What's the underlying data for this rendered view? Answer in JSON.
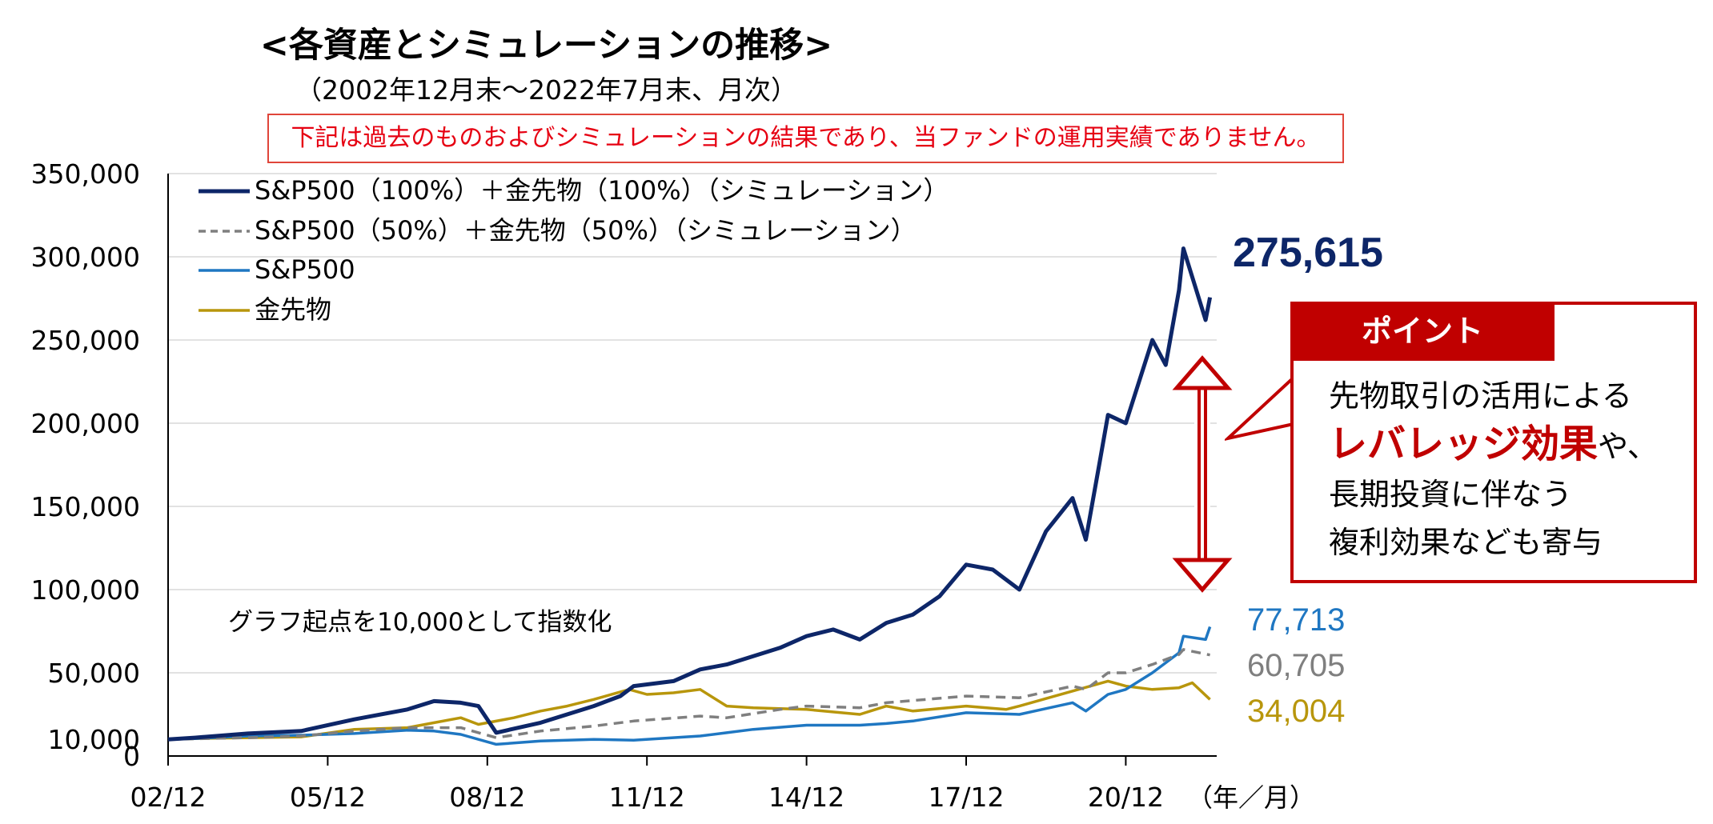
{
  "title": "<各資産とシミュレーションの推移>",
  "subtitle": "（2002年12月末～2022年7月末、月次）",
  "notice": "下記は過去のものおよびシミュレーションの結果であり、当ファンドの運用実績でありません。",
  "point": {
    "tab": "ポイント",
    "line1": "先物取引の活用による",
    "line2_emphasis": "レバレッジ効果",
    "line2_rest": "や、",
    "line3": "長期投資に伴なう",
    "line4": "複利効果なども寄与"
  },
  "colors": {
    "sp_gold_100": "#0d2668",
    "sp_gold_50": "#7f7f7f",
    "sp500": "#1f77c2",
    "gold": "#b8960c",
    "accent_red": "#c00000"
  },
  "chart_data": {
    "type": "line",
    "xlabel": "（年／月）",
    "annotation": "グラフ起点を10,000として指数化",
    "x_ticks": [
      "02/12",
      "05/12",
      "08/12",
      "11/12",
      "14/12",
      "17/12",
      "20/12"
    ],
    "y_ticks": [
      0,
      10000,
      50000,
      100000,
      150000,
      200000,
      250000,
      300000,
      350000
    ],
    "y_tick_labels": [
      "0",
      "10,000",
      "50,000",
      "100,000",
      "150,000",
      "200,000",
      "250,000",
      "300,000",
      "350,000"
    ],
    "ylim": [
      0,
      350000
    ],
    "xlim": [
      "2002-12",
      "2022-07"
    ],
    "legend_position": "top-left",
    "series": [
      {
        "name": "S&P500（100%）＋金先物（100%）（シミュレーション）",
        "end_label": "275,615",
        "points": [
          [
            "2002-12",
            10000
          ],
          [
            "2003-06",
            11000
          ],
          [
            "2004-06",
            13500
          ],
          [
            "2005-06",
            15000
          ],
          [
            "2006-06",
            22000
          ],
          [
            "2007-06",
            28000
          ],
          [
            "2007-12",
            33000
          ],
          [
            "2008-06",
            32000
          ],
          [
            "2008-10",
            30000
          ],
          [
            "2009-02",
            14000
          ],
          [
            "2009-12",
            20000
          ],
          [
            "2010-12",
            30000
          ],
          [
            "2011-06",
            36000
          ],
          [
            "2011-09",
            42000
          ],
          [
            "2012-06",
            45000
          ],
          [
            "2012-12",
            52000
          ],
          [
            "2013-06",
            55000
          ],
          [
            "2014-06",
            65000
          ],
          [
            "2014-12",
            72000
          ],
          [
            "2015-06",
            76000
          ],
          [
            "2015-12",
            70000
          ],
          [
            "2016-06",
            80000
          ],
          [
            "2016-12",
            85000
          ],
          [
            "2017-06",
            96000
          ],
          [
            "2017-12",
            115000
          ],
          [
            "2018-06",
            112000
          ],
          [
            "2018-12",
            100000
          ],
          [
            "2019-06",
            135000
          ],
          [
            "2019-12",
            155000
          ],
          [
            "2020-03",
            130000
          ],
          [
            "2020-06",
            175000
          ],
          [
            "2020-08",
            205000
          ],
          [
            "2020-12",
            200000
          ],
          [
            "2021-06",
            250000
          ],
          [
            "2021-09",
            235000
          ],
          [
            "2021-12",
            280000
          ],
          [
            "2022-01",
            305000
          ],
          [
            "2022-06",
            262000
          ],
          [
            "2022-07",
            275615
          ]
        ]
      },
      {
        "name": "S&P500（50%）＋金先物（50%）（シミュレーション）",
        "end_label": "60,705",
        "points": [
          [
            "2002-12",
            10000
          ],
          [
            "2004-06",
            11000
          ],
          [
            "2005-06",
            12000
          ],
          [
            "2006-06",
            15000
          ],
          [
            "2007-06",
            17000
          ],
          [
            "2008-06",
            17000
          ],
          [
            "2009-02",
            11000
          ],
          [
            "2009-12",
            15000
          ],
          [
            "2010-12",
            18000
          ],
          [
            "2011-09",
            21000
          ],
          [
            "2012-12",
            24000
          ],
          [
            "2013-06",
            23000
          ],
          [
            "2014-06",
            28000
          ],
          [
            "2014-12",
            30000
          ],
          [
            "2015-12",
            29000
          ],
          [
            "2016-06",
            32000
          ],
          [
            "2017-12",
            36000
          ],
          [
            "2018-12",
            35000
          ],
          [
            "2019-12",
            42000
          ],
          [
            "2020-03",
            40000
          ],
          [
            "2020-08",
            50000
          ],
          [
            "2020-12",
            50000
          ],
          [
            "2021-06",
            55000
          ],
          [
            "2021-12",
            61000
          ],
          [
            "2022-01",
            64000
          ],
          [
            "2022-07",
            60705
          ]
        ]
      },
      {
        "name": "S&P500",
        "end_label": "77,713",
        "points": [
          [
            "2002-12",
            10000
          ],
          [
            "2003-06",
            10500
          ],
          [
            "2004-06",
            12000
          ],
          [
            "2005-06",
            12500
          ],
          [
            "2006-06",
            13500
          ],
          [
            "2007-06",
            15500
          ],
          [
            "2007-12",
            15000
          ],
          [
            "2008-06",
            13000
          ],
          [
            "2009-02",
            7000
          ],
          [
            "2009-12",
            9000
          ],
          [
            "2010-12",
            10000
          ],
          [
            "2011-09",
            9500
          ],
          [
            "2012-12",
            12000
          ],
          [
            "2013-06",
            14000
          ],
          [
            "2013-12",
            16000
          ],
          [
            "2014-12",
            18500
          ],
          [
            "2015-12",
            18500
          ],
          [
            "2016-06",
            19500
          ],
          [
            "2016-12",
            21000
          ],
          [
            "2017-12",
            26000
          ],
          [
            "2018-12",
            25000
          ],
          [
            "2019-12",
            32000
          ],
          [
            "2020-03",
            27000
          ],
          [
            "2020-08",
            37000
          ],
          [
            "2020-12",
            40000
          ],
          [
            "2021-06",
            50000
          ],
          [
            "2021-12",
            62000
          ],
          [
            "2022-01",
            72000
          ],
          [
            "2022-06",
            70000
          ],
          [
            "2022-07",
            77713
          ]
        ]
      },
      {
        "name": "金先物",
        "end_label": "34,004",
        "points": [
          [
            "2002-12",
            10000
          ],
          [
            "2003-06",
            10500
          ],
          [
            "2004-06",
            11000
          ],
          [
            "2005-06",
            11500
          ],
          [
            "2006-06",
            16000
          ],
          [
            "2007-06",
            17000
          ],
          [
            "2007-12",
            20000
          ],
          [
            "2008-06",
            23000
          ],
          [
            "2008-10",
            19000
          ],
          [
            "2009-06",
            23000
          ],
          [
            "2009-12",
            27000
          ],
          [
            "2010-06",
            30000
          ],
          [
            "2010-12",
            34000
          ],
          [
            "2011-08",
            40000
          ],
          [
            "2011-12",
            37000
          ],
          [
            "2012-06",
            38000
          ],
          [
            "2012-12",
            40000
          ],
          [
            "2013-06",
            30000
          ],
          [
            "2013-12",
            29000
          ],
          [
            "2014-12",
            28000
          ],
          [
            "2015-12",
            25000
          ],
          [
            "2016-06",
            30000
          ],
          [
            "2016-12",
            27000
          ],
          [
            "2017-12",
            30000
          ],
          [
            "2018-09",
            28000
          ],
          [
            "2018-12",
            30000
          ],
          [
            "2019-08",
            36000
          ],
          [
            "2020-08",
            45000
          ],
          [
            "2020-12",
            42000
          ],
          [
            "2021-06",
            40000
          ],
          [
            "2021-12",
            41000
          ],
          [
            "2022-03",
            44000
          ],
          [
            "2022-07",
            34004
          ]
        ]
      }
    ]
  }
}
